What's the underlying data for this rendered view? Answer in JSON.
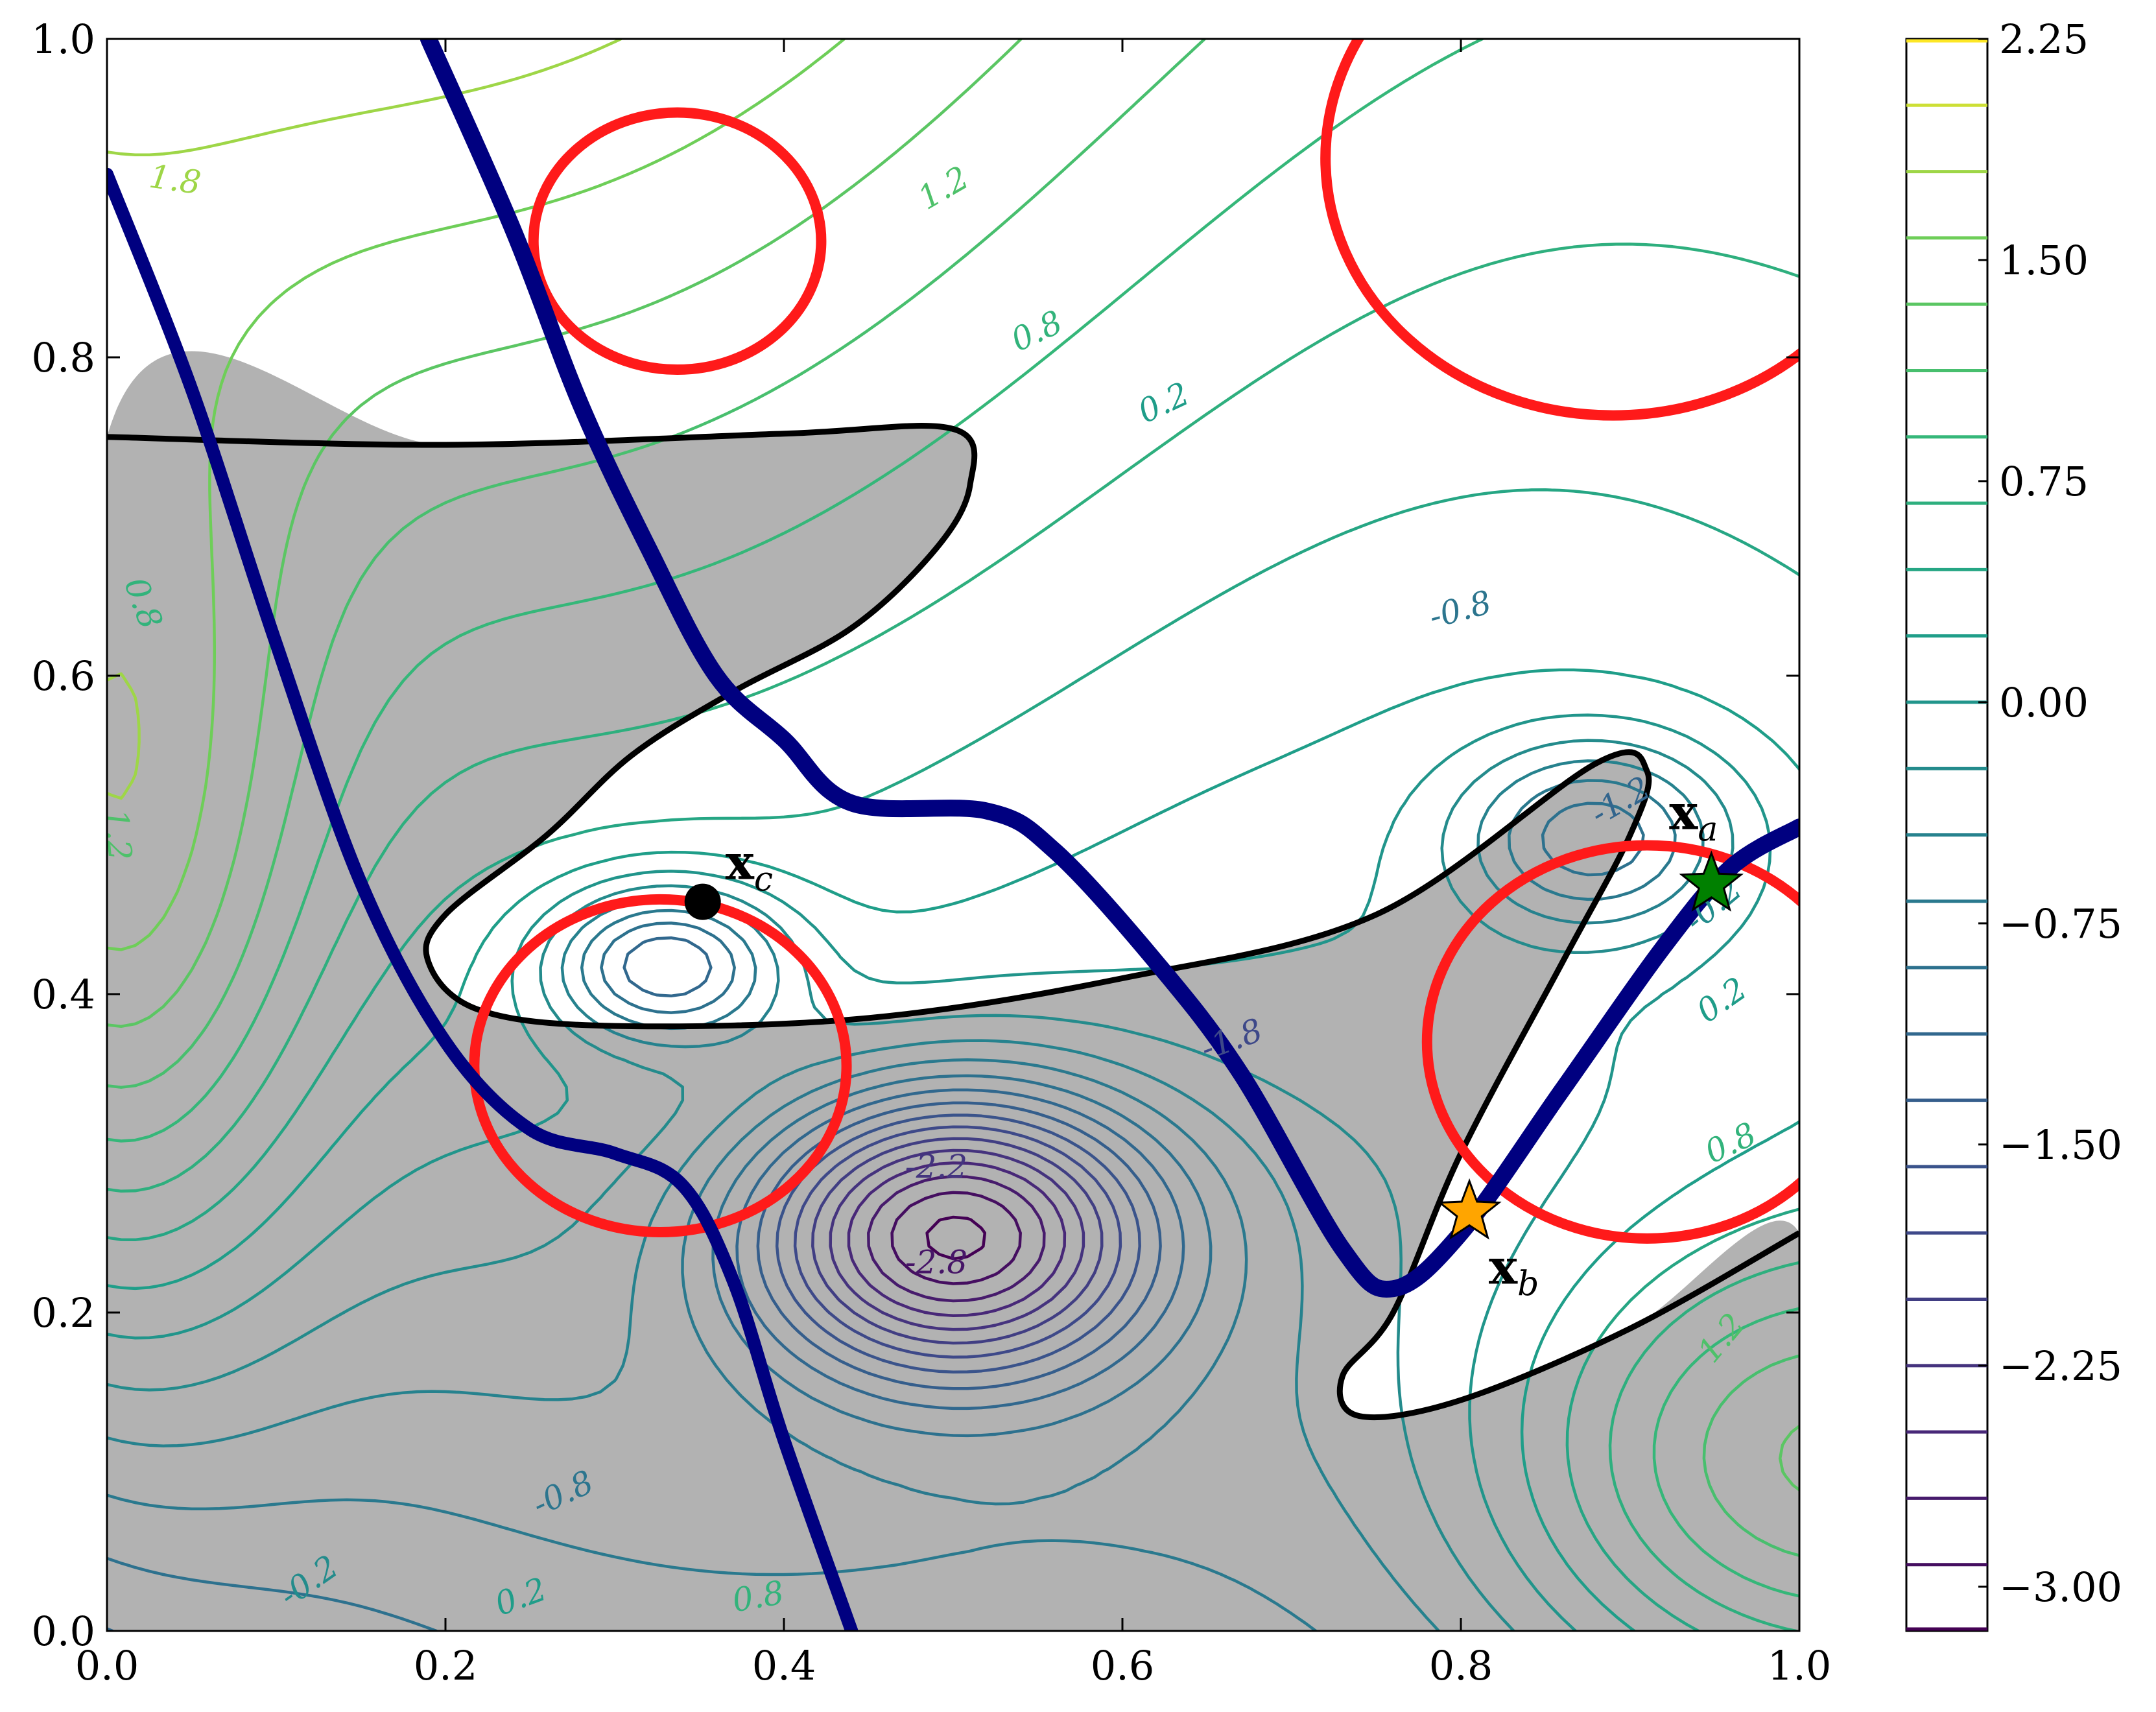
{
  "chart_data": {
    "type": "contour",
    "xlim": [
      0.0,
      1.0
    ],
    "ylim": [
      0.0,
      1.0
    ],
    "x_ticks": [
      "0.0",
      "0.2",
      "0.4",
      "0.6",
      "0.8",
      "1.0"
    ],
    "y_ticks": [
      "0.0",
      "0.2",
      "0.4",
      "0.6",
      "0.8",
      "1.0"
    ],
    "colorbar": {
      "colormap": "viridis",
      "range": [
        -3.15,
        2.25
      ],
      "levels": [
        -3.15,
        -2.925,
        -2.7,
        -2.475,
        -2.25,
        -2.025,
        -1.8,
        -1.575,
        -1.35,
        -1.125,
        -0.9,
        -0.675,
        -0.45,
        -0.225,
        0.0,
        0.225,
        0.45,
        0.675,
        0.9,
        1.125,
        1.35,
        1.575,
        1.8,
        2.025,
        2.25
      ],
      "tick_values": [
        2.25,
        1.5,
        0.75,
        0.0,
        -0.75,
        -1.5,
        -2.25,
        -3.0
      ],
      "tick_labels": [
        "2.25",
        "1.50",
        "0.75",
        "0.00",
        "−0.75",
        "−1.50",
        "−2.25",
        "−3.00"
      ]
    },
    "contour_labels": [
      {
        "text": "1.8",
        "x": 0.04,
        "y": 0.91,
        "angle": 8,
        "value": 1.8
      },
      {
        "text": "1.2",
        "x": 0.495,
        "y": 0.905,
        "angle": -30,
        "value": 1.2
      },
      {
        "text": "0.8",
        "x": 0.55,
        "y": 0.815,
        "angle": -25,
        "value": 0.8
      },
      {
        "text": "0.2",
        "x": 0.625,
        "y": 0.77,
        "angle": -25,
        "value": 0.2
      },
      {
        "text": "-0.8",
        "x": 0.8,
        "y": 0.64,
        "angle": -15,
        "value": -0.8
      },
      {
        "text": "-1.2",
        "x": 0.895,
        "y": 0.52,
        "angle": -30,
        "value": -1.2
      },
      {
        "text": "-0.2",
        "x": 0.95,
        "y": 0.455,
        "angle": -40,
        "value": -0.2
      },
      {
        "text": "0.2",
        "x": 0.955,
        "y": 0.395,
        "angle": -35,
        "value": 0.2
      },
      {
        "text": "0.8",
        "x": 0.96,
        "y": 0.305,
        "angle": -25,
        "value": 0.8
      },
      {
        "text": "1.2",
        "x": 0.955,
        "y": 0.183,
        "angle": -50,
        "value": 1.2
      },
      {
        "text": "-1.8",
        "x": 0.665,
        "y": 0.37,
        "angle": -20,
        "value": -1.8
      },
      {
        "text": "-2.2",
        "x": 0.49,
        "y": 0.29,
        "angle": 0,
        "value": -2.2
      },
      {
        "text": "-2.8",
        "x": 0.49,
        "y": 0.23,
        "angle": 0,
        "value": -2.8
      },
      {
        "text": "0.8",
        "x": 0.02,
        "y": 0.645,
        "angle": 70,
        "value": 0.8
      },
      {
        "text": "1.2",
        "x": 0.005,
        "y": 0.5,
        "angle": 85,
        "value": 1.2
      },
      {
        "text": "-0.8",
        "x": 0.27,
        "y": 0.085,
        "angle": -25,
        "value": -0.8
      },
      {
        "text": "-0.2",
        "x": 0.12,
        "y": 0.03,
        "angle": -35,
        "value": -0.2
      },
      {
        "text": "0.2",
        "x": 0.245,
        "y": 0.02,
        "angle": -20,
        "value": 0.2
      },
      {
        "text": "0.8",
        "x": 0.385,
        "y": 0.02,
        "angle": -10,
        "value": 0.8
      }
    ],
    "points": [
      {
        "name": "c",
        "label": "x",
        "sub": "c",
        "x": 0.352,
        "y": 0.458,
        "marker": "circle",
        "color": "#000000"
      },
      {
        "name": "a",
        "label": "x",
        "sub": "a",
        "x": 0.948,
        "y": 0.469,
        "marker": "star",
        "color": "#008000"
      },
      {
        "name": "b",
        "label": "x",
        "sub": "b",
        "x": 0.805,
        "y": 0.263,
        "marker": "star",
        "color": "#ffa500"
      }
    ],
    "red_circles": [
      {
        "cx": 0.337,
        "cy": 0.873,
        "r": 0.085
      },
      {
        "cx": 0.327,
        "cy": 0.355,
        "r": 0.11
      },
      {
        "cx": 0.91,
        "cy": 0.37,
        "r": 0.13
      },
      {
        "cx": 0.89,
        "cy": 0.925,
        "r": 0.17
      }
    ],
    "blue_curves": [
      [
        [
          0.0,
          0.915
        ],
        [
          0.05,
          0.78
        ],
        [
          0.1,
          0.62
        ],
        [
          0.15,
          0.47
        ],
        [
          0.2,
          0.37
        ],
        [
          0.25,
          0.315
        ],
        [
          0.3,
          0.3
        ],
        [
          0.34,
          0.28
        ],
        [
          0.37,
          0.22
        ],
        [
          0.4,
          0.12
        ],
        [
          0.44,
          0.0
        ]
      ],
      [
        [
          0.19,
          1.0
        ],
        [
          0.24,
          0.88
        ],
        [
          0.28,
          0.77
        ],
        [
          0.32,
          0.68
        ],
        [
          0.36,
          0.6
        ],
        [
          0.4,
          0.56
        ],
        [
          0.44,
          0.52
        ],
        [
          0.52,
          0.515
        ],
        [
          0.56,
          0.49
        ],
        [
          0.62,
          0.42
        ],
        [
          0.67,
          0.35
        ],
        [
          0.73,
          0.24
        ],
        [
          0.76,
          0.215
        ],
        [
          0.8,
          0.25
        ],
        [
          0.86,
          0.34
        ],
        [
          0.92,
          0.43
        ],
        [
          0.96,
          0.48
        ],
        [
          1.0,
          0.505
        ]
      ]
    ],
    "feasible_boundaries": [
      [
        [
          0.0,
          0.75
        ],
        [
          0.2,
          0.745
        ],
        [
          0.4,
          0.752
        ],
        [
          0.5,
          0.755
        ],
        [
          0.51,
          0.72
        ],
        [
          0.49,
          0.68
        ],
        [
          0.44,
          0.63
        ],
        [
          0.37,
          0.59
        ],
        [
          0.31,
          0.55
        ],
        [
          0.26,
          0.5
        ],
        [
          0.2,
          0.45
        ],
        [
          0.19,
          0.42
        ],
        [
          0.22,
          0.39
        ],
        [
          0.3,
          0.38
        ],
        [
          0.45,
          0.385
        ],
        [
          0.6,
          0.41
        ],
        [
          0.75,
          0.45
        ],
        [
          0.88,
          0.545
        ],
        [
          0.91,
          0.54
        ],
        [
          0.9,
          0.5
        ],
        [
          0.86,
          0.42
        ],
        [
          0.8,
          0.3
        ],
        [
          0.76,
          0.2
        ],
        [
          0.73,
          0.16
        ],
        [
          0.72,
          0.14
        ],
        [
          1.0,
          0.25
        ],
        [
          1.0,
          0.0
        ],
        [
          0.0,
          0.0
        ]
      ]
    ],
    "feasible_inside_loops": [
      [
        [
          0.19,
          0.42
        ],
        [
          0.2,
          0.45
        ],
        [
          0.26,
          0.5
        ],
        [
          0.31,
          0.55
        ],
        [
          0.37,
          0.59
        ],
        [
          0.44,
          0.63
        ],
        [
          0.49,
          0.68
        ],
        [
          0.51,
          0.72
        ],
        [
          0.5,
          0.755
        ],
        [
          1.0,
          1.0
        ]
      ]
    ]
  }
}
